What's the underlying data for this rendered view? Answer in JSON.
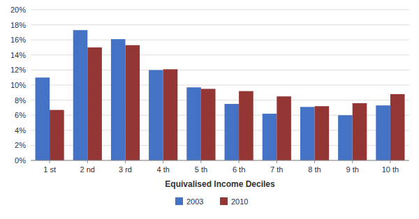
{
  "chart_data": {
    "type": "bar",
    "categories": [
      "1 st",
      "2 nd",
      "3 rd",
      "4 th",
      "5 th",
      "6 th",
      "7 th",
      "8 th",
      "9 th",
      "10 th"
    ],
    "series": [
      {
        "name": "2003",
        "color": "#4472C4",
        "values": [
          0.11,
          0.173,
          0.161,
          0.12,
          0.097,
          0.075,
          0.062,
          0.071,
          0.06,
          0.073
        ]
      },
      {
        "name": "2010",
        "color": "#943634",
        "values": [
          0.067,
          0.15,
          0.153,
          0.121,
          0.095,
          0.092,
          0.085,
          0.072,
          0.076,
          0.088
        ]
      }
    ],
    "xlabel": "Equivalised Income Deciles",
    "ylim": [
      0,
      0.2
    ],
    "yticks": [
      {
        "value": 0.0,
        "label": "0%"
      },
      {
        "value": 0.02,
        "label": "2%"
      },
      {
        "value": 0.04,
        "label": "4%"
      },
      {
        "value": 0.06,
        "label": "6%"
      },
      {
        "value": 0.08,
        "label": "8%"
      },
      {
        "value": 0.1,
        "label": "10%"
      },
      {
        "value": 0.12,
        "label": "12%"
      },
      {
        "value": 0.14,
        "label": "14%"
      },
      {
        "value": 0.16,
        "label": "16%"
      },
      {
        "value": 0.18,
        "label": "18%"
      },
      {
        "value": 0.2,
        "label": "20%"
      }
    ],
    "grid": true,
    "legend": "bottom"
  }
}
